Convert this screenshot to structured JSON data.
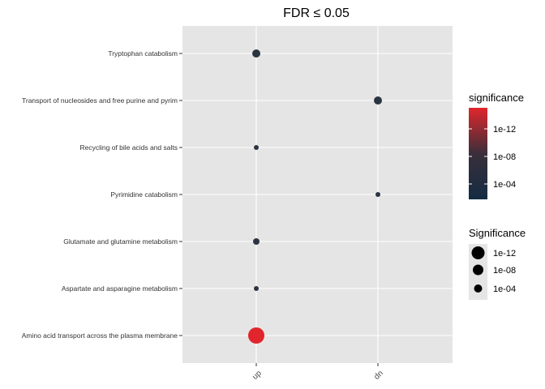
{
  "chart_data": {
    "type": "scatter",
    "title": "FDR ≤ 0.05",
    "xlabel": "",
    "ylabel": "",
    "x_categories": [
      "up",
      "dn"
    ],
    "y_categories": [
      "Tryptophan catabolism",
      "Transport of nucleosides and free purine and pyrim",
      "Recycling of bile acids and salts",
      "Pyrimidine catabolism",
      "Glutamate and glutamine metabolism",
      "Aspartate and asparagine metabolism",
      "Amino acid transport across the plasma membrane"
    ],
    "points": [
      {
        "x": "up",
        "y": "Tryptophan catabolism",
        "significance": 1e-07
      },
      {
        "x": "dn",
        "y": "Transport of nucleosides and free purine and pyrim",
        "significance": 1e-07
      },
      {
        "x": "up",
        "y": "Recycling of bile acids and salts",
        "significance": 0.0003
      },
      {
        "x": "dn",
        "y": "Pyrimidine catabolism",
        "significance": 3e-05
      },
      {
        "x": "up",
        "y": "Glutamate and glutamine metabolism",
        "significance": 1e-06
      },
      {
        "x": "up",
        "y": "Aspartate and asparagine metabolism",
        "significance": 0.0003
      },
      {
        "x": "up",
        "y": "Amino acid transport across the plasma membrane",
        "significance": 1e-14
      }
    ],
    "grid": true,
    "legends": {
      "color": {
        "title": "significance",
        "ticks": [
          "1e-12",
          "1e-08",
          "1e-04"
        ],
        "low_color": "#132B43",
        "mid_color": "#3a2f3a",
        "high_color": "#e0262c"
      },
      "size": {
        "title": "Significance",
        "ticks": [
          "1e-12",
          "1e-08",
          "1e-04"
        ]
      },
      "position": "right"
    }
  }
}
